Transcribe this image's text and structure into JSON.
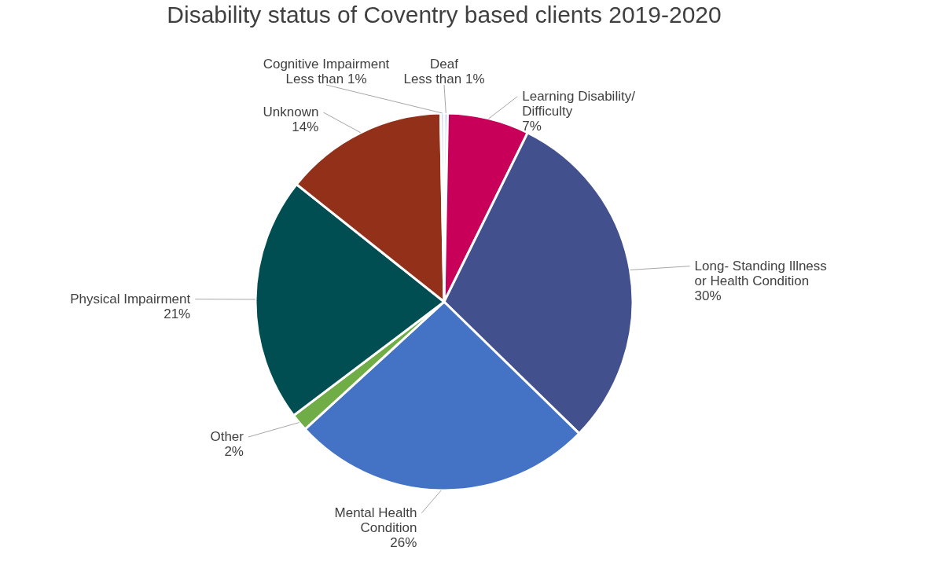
{
  "chart_data": {
    "type": "pie",
    "title": "Disability status of Coventry based clients 2019-2020",
    "categories": [
      "Deaf",
      "Learning Disability/ Difficulty",
      "Long- Standing Illness or Health Condition",
      "Mental Health Condition",
      "Other",
      "Physical Impairment",
      "Unknown",
      "Cognitive Impairment"
    ],
    "values": [
      0.3,
      7,
      30,
      25.9,
      1.5,
      21,
      14,
      0.3
    ],
    "value_labels": [
      "Less than 1%",
      "7%",
      "30%",
      "26%",
      "2%",
      "21%",
      "14%",
      "Less than 1%"
    ],
    "colors": [
      "#a9c4e6",
      "#c8005a",
      "#43508e",
      "#4472c4",
      "#70ad47",
      "#004d52",
      "#93301a",
      "#d0d9ea"
    ]
  }
}
